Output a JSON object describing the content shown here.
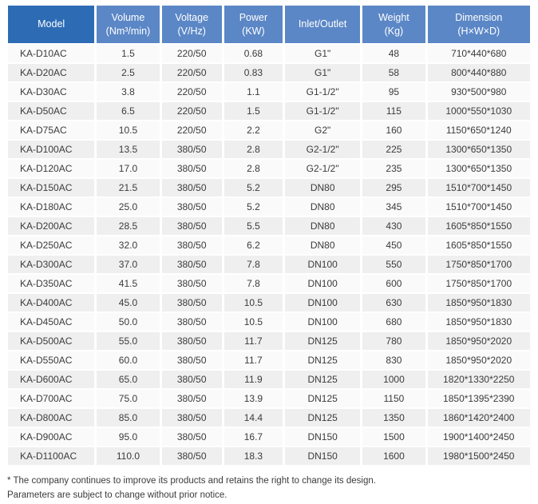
{
  "colors": {
    "header_dark": "#2d6cb4",
    "header_light": "#5b87c6",
    "header_text": "#ffffff",
    "row_odd": "#fafafa",
    "row_even": "#efefef",
    "body_text": "#3b3b3b"
  },
  "table": {
    "columns": [
      {
        "key": "model",
        "label": "Model",
        "unit": ""
      },
      {
        "key": "volume",
        "label": "Volume",
        "unit": "(Nm³/min)"
      },
      {
        "key": "voltage",
        "label": "Voltage",
        "unit": "(V/Hz)"
      },
      {
        "key": "power",
        "label": "Power",
        "unit": "(KW)"
      },
      {
        "key": "inlet_outlet",
        "label": "Inlet/Outlet",
        "unit": ""
      },
      {
        "key": "weight",
        "label": "Weight",
        "unit": "(Kg)"
      },
      {
        "key": "dimension",
        "label": "Dimension",
        "unit": "(H×W×D)"
      }
    ],
    "rows": [
      [
        "KA-D10AC",
        "1.5",
        "220/50",
        "0.68",
        "G1\"",
        "48",
        "710*440*680"
      ],
      [
        "KA-D20AC",
        "2.5",
        "220/50",
        "0.83",
        "G1\"",
        "58",
        "800*440*880"
      ],
      [
        "KA-D30AC",
        "3.8",
        "220/50",
        "1.1",
        "G1-1/2\"",
        "95",
        "930*500*980"
      ],
      [
        "KA-D50AC",
        "6.5",
        "220/50",
        "1.5",
        "G1-1/2\"",
        "115",
        "1000*550*1030"
      ],
      [
        "KA-D75AC",
        "10.5",
        "220/50",
        "2.2",
        "G2\"",
        "160",
        "1150*650*1240"
      ],
      [
        "KA-D100AC",
        "13.5",
        "380/50",
        "2.8",
        "G2-1/2\"",
        "225",
        "1300*650*1350"
      ],
      [
        "KA-D120AC",
        "17.0",
        "380/50",
        "2.8",
        "G2-1/2\"",
        "235",
        "1300*650*1350"
      ],
      [
        "KA-D150AC",
        "21.5",
        "380/50",
        "5.2",
        "DN80",
        "295",
        "1510*700*1450"
      ],
      [
        "KA-D180AC",
        "25.0",
        "380/50",
        "5.2",
        "DN80",
        "345",
        "1510*700*1450"
      ],
      [
        "KA-D200AC",
        "28.5",
        "380/50",
        "5.5",
        "DN80",
        "430",
        "1605*850*1550"
      ],
      [
        "KA-D250AC",
        "32.0",
        "380/50",
        "6.2",
        "DN80",
        "450",
        "1605*850*1550"
      ],
      [
        "KA-D300AC",
        "37.0",
        "380/50",
        "7.8",
        "DN100",
        "550",
        "1750*850*1700"
      ],
      [
        "KA-D350AC",
        "41.5",
        "380/50",
        "7.8",
        "DN100",
        "600",
        "1750*850*1700"
      ],
      [
        "KA-D400AC",
        "45.0",
        "380/50",
        "10.5",
        "DN100",
        "630",
        "1850*950*1830"
      ],
      [
        "KA-D450AC",
        "50.0",
        "380/50",
        "10.5",
        "DN100",
        "680",
        "1850*950*1830"
      ],
      [
        "KA-D500AC",
        "55.0",
        "380/50",
        "11.7",
        "DN125",
        "780",
        "1850*950*2020"
      ],
      [
        "KA-D550AC",
        "60.0",
        "380/50",
        "11.7",
        "DN125",
        "830",
        "1850*950*2020"
      ],
      [
        "KA-D600AC",
        "65.0",
        "380/50",
        "11.9",
        "DN125",
        "1000",
        "1820*1330*2250"
      ],
      [
        "KA-D700AC",
        "75.0",
        "380/50",
        "13.9",
        "DN125",
        "1150",
        "1850*1395*2390"
      ],
      [
        "KA-D800AC",
        "85.0",
        "380/50",
        "14.4",
        "DN125",
        "1350",
        "1860*1420*2400"
      ],
      [
        "KA-D900AC",
        "95.0",
        "380/50",
        "16.7",
        "DN150",
        "1500",
        "1900*1400*2450"
      ],
      [
        "KA-D1100AC",
        "110.0",
        "380/50",
        "18.3",
        "DN150",
        "1600",
        "1980*1500*2450"
      ]
    ]
  },
  "footnotes": [
    "* The company continues to improve its products and retains the right to change its design.",
    "Parameters are subject to change without prior notice."
  ]
}
